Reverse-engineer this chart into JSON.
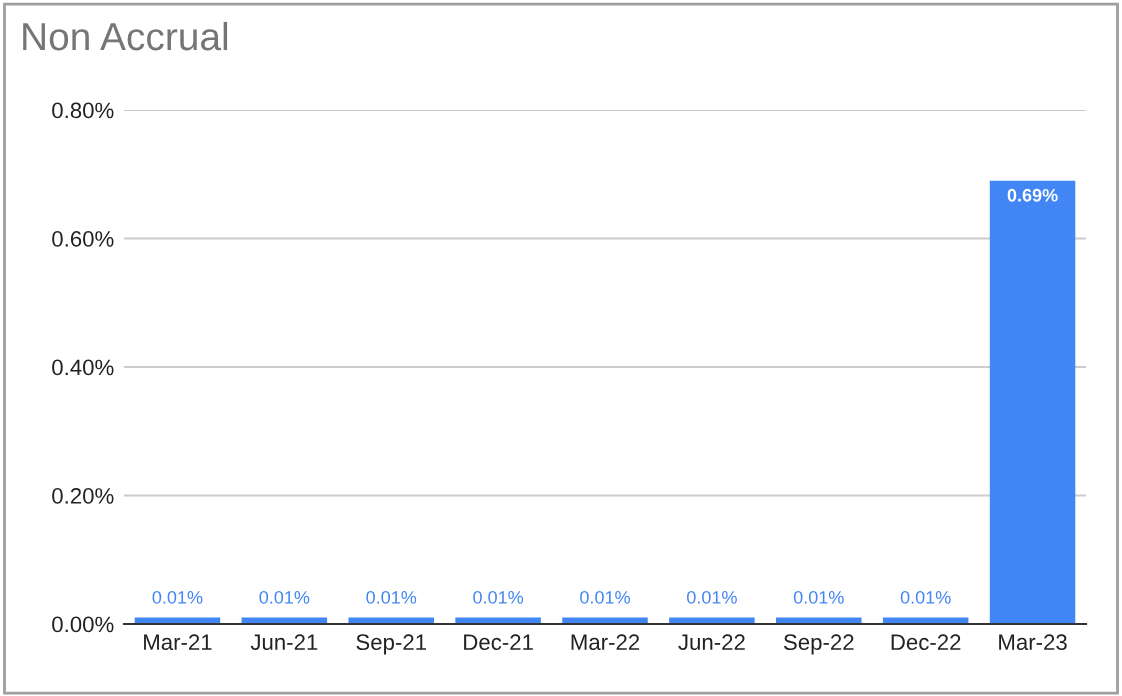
{
  "chart_data": {
    "type": "bar",
    "title": "Non Accrual",
    "categories": [
      "Mar-21",
      "Jun-21",
      "Sep-21",
      "Dec-21",
      "Mar-22",
      "Jun-22",
      "Sep-22",
      "Dec-22",
      "Mar-23"
    ],
    "values": [
      0.01,
      0.01,
      0.01,
      0.01,
      0.01,
      0.01,
      0.01,
      0.01,
      0.69
    ],
    "value_labels": [
      "0.01%",
      "0.01%",
      "0.01%",
      "0.01%",
      "0.01%",
      "0.01%",
      "0.01%",
      "0.01%",
      "0.69%"
    ],
    "color": "#4285f4",
    "ylim": [
      0,
      0.8
    ],
    "yticks": [
      {
        "value": 0,
        "label": "0.00%"
      },
      {
        "value": 0.2,
        "label": "0.20%"
      },
      {
        "value": 0.4,
        "label": "0.40%"
      },
      {
        "value": 0.6,
        "label": "0.60%"
      },
      {
        "value": 0.8,
        "label": "0.80%"
      }
    ],
    "grid": "y"
  }
}
